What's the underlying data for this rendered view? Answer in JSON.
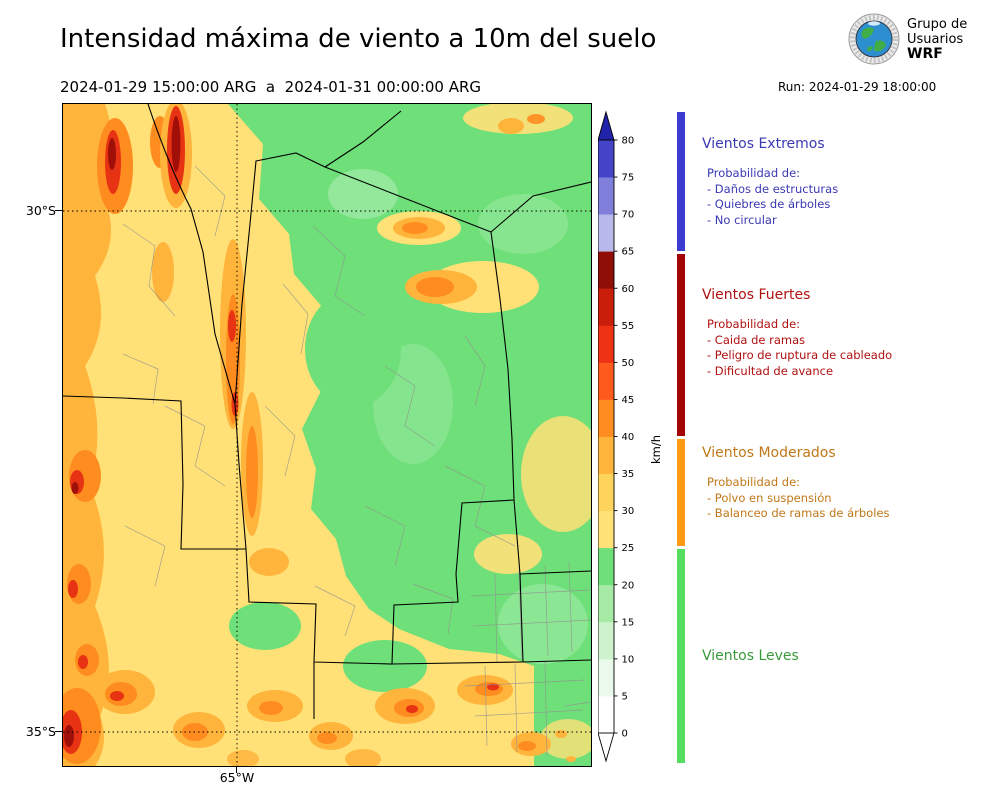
{
  "header": {
    "title": "Intensidad máxima de viento a 10m del suelo",
    "date_range": "2024-01-29 15:00:00 ARG  a  2024-01-31 00:00:00 ARG",
    "run": "Run: 2024-01-29 18:00:00",
    "logo": {
      "line1": "Grupo de",
      "line2": "Usuarios",
      "line3": "WRF"
    }
  },
  "map": {
    "lat_labels": [
      "30°S",
      "35°S"
    ],
    "lon_label": "65°W"
  },
  "colorbar": {
    "unit": "km/h",
    "ticks": [
      0,
      5,
      10,
      15,
      20,
      25,
      30,
      35,
      40,
      45,
      50,
      55,
      60,
      65,
      70,
      75,
      80
    ],
    "segment_colors_bottom_to_top": [
      "#ffffff",
      "#eaf9ea",
      "#cdf2cd",
      "#a6eaa6",
      "#6fdf79",
      "#ffe178",
      "#ffd45c",
      "#ffb43c",
      "#ff8c1e",
      "#ff5a1e",
      "#ee3214",
      "#c81e0a",
      "#8f0f08",
      "#b8b8ea",
      "#8080dc",
      "#4444c8"
    ],
    "over_color": "#2222aa",
    "under_color": "#ffffff"
  },
  "legend": {
    "sections": [
      {
        "title": "Vientos Extremos",
        "text_color": "#3939b4",
        "bar_color": "#3c3cd2",
        "items": [
          "Probabilidad de:",
          "- Daños de estructuras",
          "- Quiebres de árboles",
          "- No circular"
        ]
      },
      {
        "title": "Vientos Fuertes",
        "text_color": "#b01010",
        "bar_color": "#a30505",
        "items": [
          "Probabilidad de:",
          "- Caida de ramas",
          "- Peligro de ruptura de cableado",
          "- Dificultad de avance"
        ]
      },
      {
        "title": "Vientos Moderados",
        "text_color": "#c07818",
        "bar_color": "#ff9913",
        "items": [
          "Probabilidad de:",
          "- Polvo en suspensión",
          "- Balanceo de ramas de árboles"
        ]
      },
      {
        "title": "Vientos Leves",
        "text_color": "#3a9a3a",
        "bar_color": "#55dd60",
        "items": []
      }
    ]
  }
}
